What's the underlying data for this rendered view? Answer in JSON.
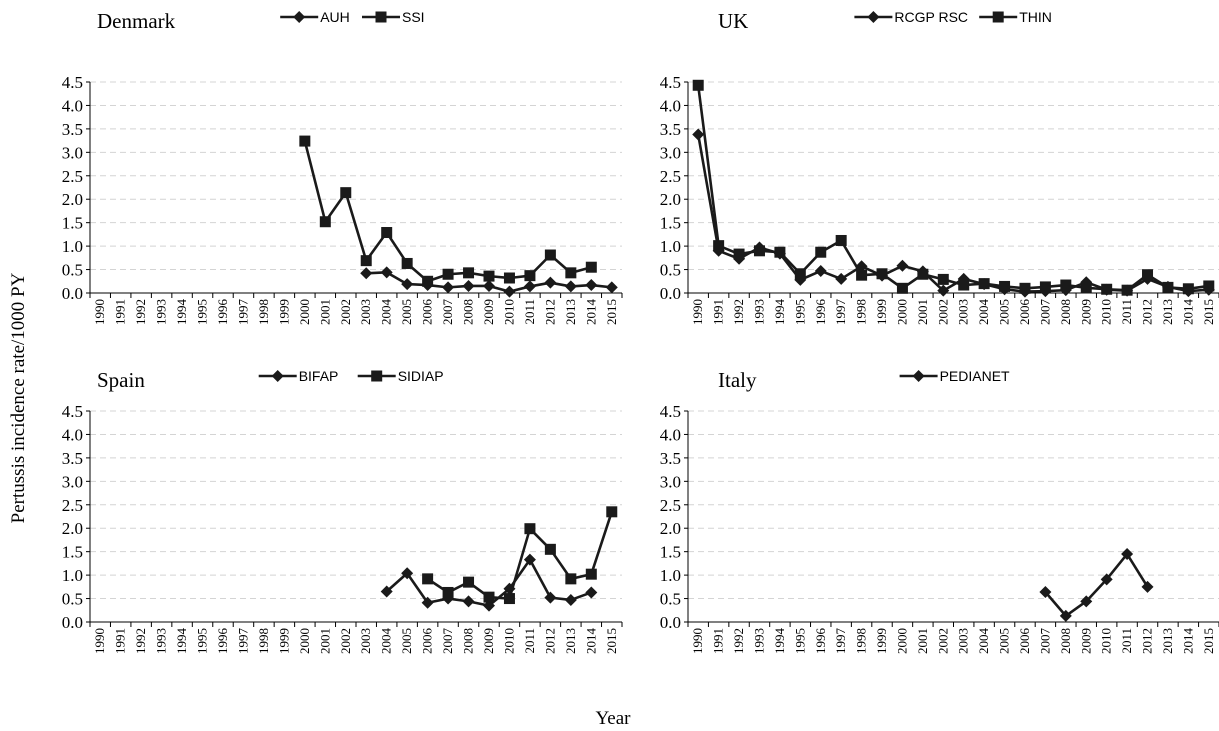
{
  "figure": {
    "ylabel": "Pertussis incidence rate/1000 PY",
    "xlabel": "Year"
  },
  "chart_data": [
    {
      "type": "line",
      "title": "Denmark",
      "categories": [
        "1990",
        "1991",
        "1992",
        "1993",
        "1994",
        "1995",
        "1996",
        "1997",
        "1998",
        "1999",
        "2000",
        "2001",
        "2002",
        "2003",
        "2004",
        "2005",
        "2006",
        "2007",
        "2008",
        "2009",
        "2010",
        "2011",
        "2012",
        "2013",
        "2014",
        "2015"
      ],
      "ylim": [
        0,
        4.5
      ],
      "yticks": [
        "0.0",
        "0.5",
        "1.0",
        "1.5",
        "2.0",
        "2.5",
        "3.0",
        "3.5",
        "4.0",
        "4.5"
      ],
      "grid": true,
      "legend_position": "top-center",
      "series": [
        {
          "name": "AUH",
          "marker": "diamond",
          "values": [
            null,
            null,
            null,
            null,
            null,
            null,
            null,
            null,
            null,
            null,
            null,
            null,
            null,
            0.42,
            0.44,
            0.19,
            0.17,
            0.12,
            0.15,
            0.15,
            0.03,
            0.14,
            0.22,
            0.14,
            0.17,
            0.12
          ]
        },
        {
          "name": "SSI",
          "marker": "square",
          "values": [
            null,
            null,
            null,
            null,
            null,
            null,
            null,
            null,
            null,
            null,
            3.24,
            1.52,
            2.14,
            0.69,
            1.29,
            0.63,
            0.25,
            0.4,
            0.43,
            0.36,
            0.32,
            0.37,
            0.81,
            0.43,
            0.55,
            null
          ]
        }
      ]
    },
    {
      "type": "line",
      "title": "UK",
      "categories": [
        "1990",
        "1991",
        "1992",
        "1993",
        "1994",
        "1995",
        "1996",
        "1997",
        "1998",
        "1999",
        "2000",
        "2001",
        "2002",
        "2003",
        "2004",
        "2005",
        "2006",
        "2007",
        "2008",
        "2009",
        "2010",
        "2011",
        "2012",
        "2013",
        "2014",
        "2015"
      ],
      "ylim": [
        0,
        4.5
      ],
      "yticks": [
        "0.0",
        "0.5",
        "1.0",
        "1.5",
        "2.0",
        "2.5",
        "3.0",
        "3.5",
        "4.0",
        "4.5"
      ],
      "grid": true,
      "legend_position": "top-center",
      "series": [
        {
          "name": "RCGP RSC",
          "marker": "diamond",
          "values": [
            3.38,
            0.9,
            0.73,
            0.97,
            0.84,
            0.28,
            0.47,
            0.3,
            0.57,
            0.37,
            0.58,
            0.46,
            0.05,
            0.3,
            0.19,
            0.08,
            0.03,
            0.04,
            0.06,
            0.23,
            0.07,
            0.05,
            0.3,
            0.13,
            0.04,
            0.07
          ]
        },
        {
          "name": "THIN",
          "marker": "square",
          "values": [
            4.43,
            1.01,
            0.83,
            0.9,
            0.87,
            0.41,
            0.87,
            1.12,
            0.38,
            0.41,
            0.1,
            0.4,
            0.29,
            0.17,
            0.2,
            0.14,
            0.1,
            0.13,
            0.17,
            0.11,
            0.08,
            0.06,
            0.39,
            0.12,
            0.09,
            0.15
          ]
        }
      ]
    },
    {
      "type": "line",
      "title": "Spain",
      "categories": [
        "1990",
        "1991",
        "1992",
        "1993",
        "1994",
        "1995",
        "1996",
        "1997",
        "1998",
        "1999",
        "2000",
        "2001",
        "2002",
        "2003",
        "2004",
        "2005",
        "2006",
        "2007",
        "2008",
        "2009",
        "2010",
        "2011",
        "2012",
        "2013",
        "2014",
        "2015"
      ],
      "ylim": [
        0,
        4.5
      ],
      "yticks": [
        "0.0",
        "0.5",
        "1.0",
        "1.5",
        "2.0",
        "2.5",
        "3.0",
        "3.5",
        "4.0",
        "4.5"
      ],
      "grid": true,
      "legend_position": "top-center",
      "series": [
        {
          "name": "BIFAP",
          "marker": "diamond",
          "values": [
            null,
            null,
            null,
            null,
            null,
            null,
            null,
            null,
            null,
            null,
            null,
            null,
            null,
            null,
            0.65,
            1.04,
            0.41,
            0.5,
            0.44,
            0.35,
            0.71,
            1.33,
            0.52,
            0.47,
            0.63,
            null
          ]
        },
        {
          "name": "SIDIAP",
          "marker": "square",
          "values": [
            null,
            null,
            null,
            null,
            null,
            null,
            null,
            null,
            null,
            null,
            null,
            null,
            null,
            null,
            null,
            null,
            0.92,
            0.63,
            0.85,
            0.53,
            0.5,
            1.99,
            1.55,
            0.92,
            1.02,
            2.35
          ]
        }
      ]
    },
    {
      "type": "line",
      "title": "Italy",
      "categories": [
        "1990",
        "1991",
        "1992",
        "1993",
        "1994",
        "1995",
        "1996",
        "1997",
        "1998",
        "1999",
        "2000",
        "2001",
        "2002",
        "2003",
        "2004",
        "2005",
        "2006",
        "2007",
        "2008",
        "2009",
        "2010",
        "2011",
        "2012",
        "2013",
        "2014",
        "2015"
      ],
      "ylim": [
        0,
        4.5
      ],
      "yticks": [
        "0.0",
        "0.5",
        "1.0",
        "1.5",
        "2.0",
        "2.5",
        "3.0",
        "3.5",
        "4.0",
        "4.5"
      ],
      "grid": true,
      "legend_position": "top-center",
      "series": [
        {
          "name": "PEDIANET",
          "marker": "diamond",
          "values": [
            null,
            null,
            null,
            null,
            null,
            null,
            null,
            null,
            null,
            null,
            null,
            null,
            null,
            null,
            null,
            null,
            null,
            0.64,
            0.13,
            0.44,
            0.91,
            1.45,
            0.75,
            null,
            null,
            null
          ]
        }
      ]
    }
  ]
}
